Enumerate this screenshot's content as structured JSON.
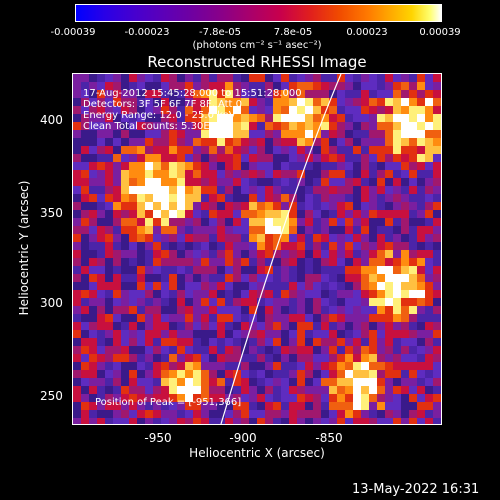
{
  "colorbar": {
    "tick_labels": [
      "-0.00039",
      "-0.00023",
      "-7.8e-05",
      "7.8e-05",
      "0.00023",
      "0.00039"
    ],
    "unit_label": "(photons cm⁻² s⁻¹ asec⁻²)",
    "colors": [
      "#0000ff",
      "#7000a0",
      "#e01e1e",
      "#ff7a00",
      "#ffff70",
      "#ffffff"
    ]
  },
  "plot": {
    "title": "Reconstructed RHESSI Image",
    "info_lines": [
      "17-Aug-2012 15:45:28.000 to 15:51:28.000",
      "Detectors: 3F 5F 6F 7F 8F, Att 0",
      "Energy Range: 12.0 - 25.0 keV",
      "Clean     Total counts: 5.30E+03"
    ],
    "peak_label": "Position of Peak = [-951,366]",
    "xlabel": "Heliocentric X (arcsec)",
    "ylabel": "Heliocentric Y (arcsec)",
    "xticks": [
      "-950",
      "-900",
      "-850"
    ],
    "yticks": [
      "400",
      "350",
      "300",
      "250"
    ],
    "xlim": [
      -995,
      -780
    ],
    "ylim": [
      235,
      420
    ],
    "limb_color": "#ffffff"
  },
  "footer": {
    "date": "13-May-2022 16:31"
  }
}
